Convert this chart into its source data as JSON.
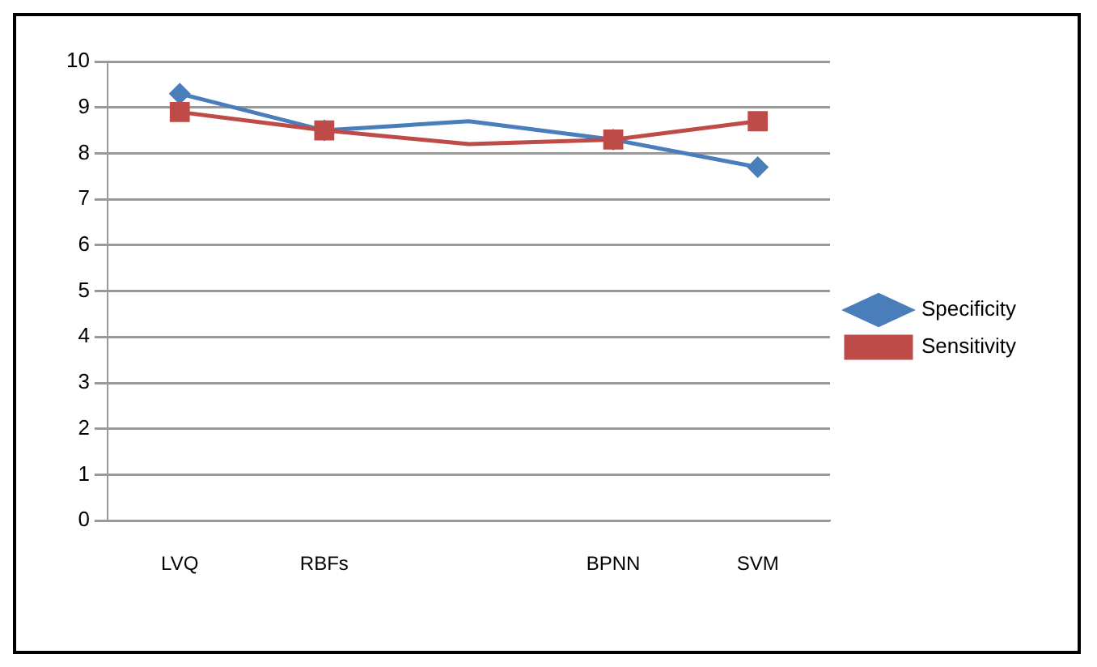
{
  "chart_data": {
    "type": "line",
    "categories": [
      "LVQ",
      "RBFs",
      null,
      "BPNN",
      "SVM"
    ],
    "series": [
      {
        "name": "Specificity",
        "color": "#4a7ebb",
        "marker": "diamond",
        "values": [
          9.3,
          8.5,
          8.7,
          8.3,
          7.7
        ]
      },
      {
        "name": "Sensitivity",
        "color": "#be4b48",
        "marker": "square",
        "values": [
          8.9,
          8.5,
          8.2,
          8.3,
          8.7
        ]
      }
    ],
    "ylim": [
      0,
      10
    ],
    "yticks": [
      0,
      1,
      2,
      3,
      4,
      5,
      6,
      7,
      8,
      9,
      10
    ],
    "grid": "y",
    "legend": "right"
  }
}
